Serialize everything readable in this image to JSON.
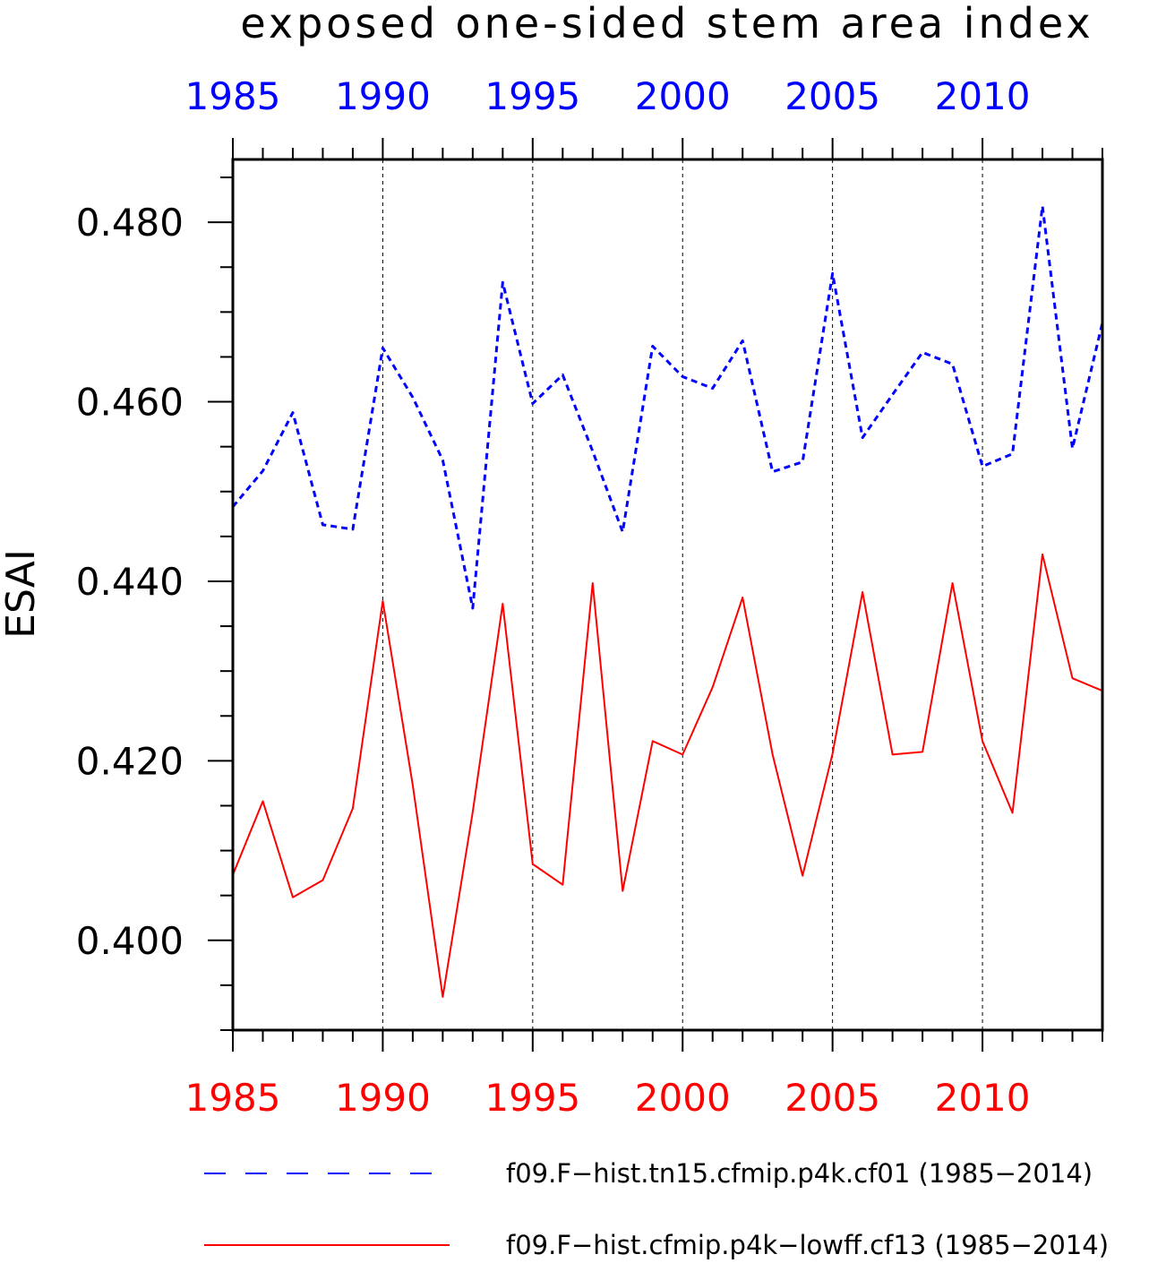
{
  "chart_data": {
    "type": "line",
    "title": "exposed one-sided stem area index",
    "ylabel": "ESAI",
    "xlim": [
      1985,
      2014
    ],
    "ylim": [
      0.39,
      0.487
    ],
    "yticks_major": [
      "0.400",
      "0.420",
      "0.440",
      "0.460",
      "0.480"
    ],
    "xticks_major": [
      "1985",
      "1990",
      "1995",
      "2000",
      "2005",
      "2010"
    ],
    "top_axis_color": "#0000ff",
    "bottom_axis_color": "#ff0000",
    "grid": "vertical dashed at major x ticks",
    "legend_position": "bottom",
    "x": [
      1985,
      1986,
      1987,
      1988,
      1989,
      1990,
      1991,
      1992,
      1993,
      1994,
      1995,
      1996,
      1997,
      1998,
      1999,
      2000,
      2001,
      2002,
      2003,
      2004,
      2005,
      2006,
      2007,
      2008,
      2009,
      2010,
      2011,
      2012,
      2013,
      2014
    ],
    "series": [
      {
        "name": "f09.F−hist.tn15.cfmip.p4k.cf01 (1985−2014)",
        "color": "#0000ff",
        "style": "dashed",
        "values": [
          0.4483,
          0.4523,
          0.4588,
          0.4463,
          0.4458,
          0.466,
          0.4605,
          0.4535,
          0.437,
          0.4733,
          0.4598,
          0.463,
          0.4545,
          0.4455,
          0.4662,
          0.4628,
          0.4615,
          0.4668,
          0.4522,
          0.4533,
          0.4743,
          0.456,
          0.4608,
          0.4655,
          0.4642,
          0.4528,
          0.4542,
          0.4818,
          0.4548,
          0.4688
        ]
      },
      {
        "name": "f09.F−hist.cfmip.p4k−lowff.cf13 (1985−2014)",
        "color": "#ff0000",
        "style": "solid",
        "values": [
          0.4073,
          0.4155,
          0.4048,
          0.4067,
          0.4147,
          0.4378,
          0.4173,
          0.3937,
          0.4143,
          0.4375,
          0.4085,
          0.4062,
          0.4398,
          0.4055,
          0.4222,
          0.4207,
          0.4282,
          0.4382,
          0.4207,
          0.4072,
          0.4208,
          0.4388,
          0.4207,
          0.421,
          0.4398,
          0.4222,
          0.4142,
          0.443,
          0.4292,
          0.4278
        ]
      }
    ]
  }
}
